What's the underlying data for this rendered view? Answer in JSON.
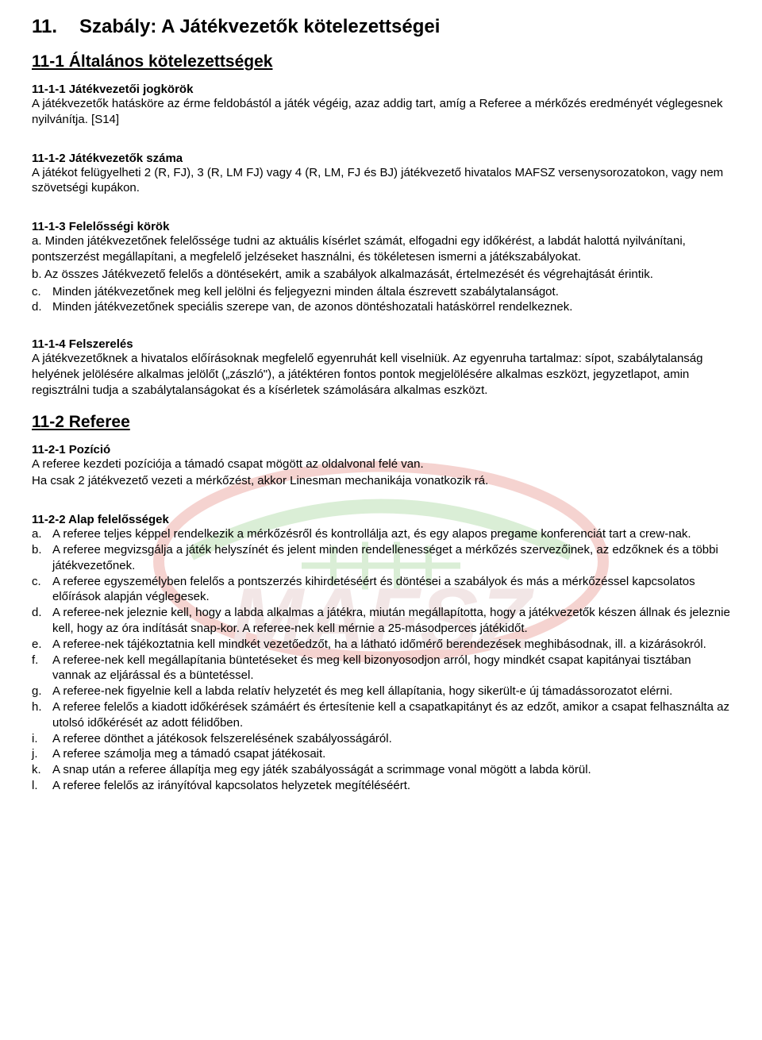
{
  "title_num": "11.",
  "title_text": "Szabály: A Játékvezetők kötelezettségei",
  "sec_11_1": "11-1 Általános kötelezettségek",
  "h_11_1_1": "11-1-1 Játékvezetői jogkörök",
  "p_11_1_1": "A játékvezetők hatásköre az érme feldobástól a játék végéig, azaz addig tart, amíg a Referee a mérkőzés eredményét véglegesnek nyilvánítja. [S14]",
  "h_11_1_2": "11-1-2 Játékvezetők száma",
  "p_11_1_2": "A játékot felügyelheti 2 (R, FJ), 3 (R, LM FJ) vagy 4 (R, LM, FJ és BJ) játékvezető hivatalos MAFSZ versenysorozatokon, vagy nem szövetségi kupákon.",
  "h_11_1_3": "11-1-3 Felelősségi körök",
  "l_11_1_3": [
    {
      "m": "a.",
      "t": "Minden játékvezetőnek felelőssége tudni az aktuális kísérlet számát, elfogadni egy időkérést, a labdát halottá nyilvánítani, pontszerzést megállapítani, a megfelelő jelzéseket használni, és tökéletesen ismerni a játékszabályokat.",
      "flat": true
    },
    {
      "m": "b.",
      "t": "Az összes Játékvezető felelős a döntésekért, amik a szabályok alkalmazását, értelmezését és végrehajtását érintik.",
      "flat": true
    },
    {
      "m": "c.",
      "t": "Minden játékvezetőnek meg kell jelölni és feljegyezni minden általa észrevett szabálytalanságot."
    },
    {
      "m": "d.",
      "t": "Minden játékvezetőnek speciális szerepe van, de azonos döntéshozatali hatáskörrel rendelkeznek."
    }
  ],
  "h_11_1_4": "11-1-4 Felszerelés",
  "p_11_1_4": "A játékvezetőknek a hivatalos előírásoknak megfelelő egyenruhát kell viselniük. Az egyenruha tartalmaz: sípot, szabálytalanság helyének jelölésére alkalmas jelölőt („zászló\"), a játéktéren fontos pontok megjelölésére alkalmas eszközt, jegyzetlapot, amin regisztrálni tudja a szabálytalanságokat és a kísérletek számolására alkalmas eszközt.",
  "sec_11_2": "11-2 Referee",
  "h_11_2_1": "11-2-1 Pozíció",
  "p_11_2_1a": "A referee kezdeti pozíciója a támadó csapat mögött az oldalvonal felé van.",
  "p_11_2_1b": "Ha csak 2 játékvezető vezeti a mérkőzést, akkor Linesman mechanikája vonatkozik rá.",
  "h_11_2_2": "11-2-2 Alap felelősségek",
  "l_11_2_2": [
    {
      "m": "a.",
      "t": "A referee teljes képpel rendelkezik a mérkőzésről és kontrollálja azt, és egy alapos pregame konferenciát tart a crew-nak."
    },
    {
      "m": "b.",
      "t": "A referee megvizsgálja a játék helyszínét és jelent minden rendellenességet a mérkőzés szervezőinek, az edzőknek és a többi játékvezetőnek."
    },
    {
      "m": "c.",
      "t": "A referee egyszemélyben felelős a pontszerzés kihirdetéséért és döntései a szabályok és más a mérkőzéssel kapcsolatos előírások alapján véglegesek."
    },
    {
      "m": "d.",
      "t": "A referee-nek jeleznie kell, hogy a labda alkalmas a játékra, miután megállapította, hogy a játékvezetők készen állnak és jeleznie kell, hogy az óra indítását snap-kor. A referee-nek kell mérnie a 25-másodperces játékidőt."
    },
    {
      "m": "e.",
      "t": "A referee-nek tájékoztatnia kell mindkét vezetőedzőt, ha a látható időmérő berendezések meghibásodnak, ill. a kizárásokról."
    },
    {
      "m": "f.",
      "t": "A referee-nek kell megállapítania büntetéseket és meg kell bizonyosodjon arról, hogy mindkét csapat kapitányai tisztában vannak az eljárással és a büntetéssel."
    },
    {
      "m": "g.",
      "t": "A referee-nek figyelnie kell a labda relatív helyzetét és meg kell állapítania, hogy sikerült-e új támadássorozatot elérni."
    },
    {
      "m": "h.",
      "t": "A referee felelős a kiadott időkérések számáért és értesítenie kell a csapatkapitányt és az edzőt, amikor a csapat felhasználta az utolsó időkérését az adott félidőben."
    },
    {
      "m": "i.",
      "t": "A referee dönthet a játékosok felszerelésének szabályosságáról."
    },
    {
      "m": "j.",
      "t": "A referee számolja meg a támadó csapat játékosait."
    },
    {
      "m": "k.",
      "t": "A snap után a referee állapítja meg egy játék szabályosságát a scrimmage vonal mögött a labda körül."
    },
    {
      "m": "l.",
      "t": "A referee felelős az irányítóval kapcsolatos helyzetek megítéléséért."
    }
  ],
  "watermark_text": "MAFSZ",
  "colors": {
    "text": "#000000",
    "watermark_red": "#d43a2e",
    "watermark_green": "#5db54b",
    "watermark_text": "#c98f8f"
  }
}
